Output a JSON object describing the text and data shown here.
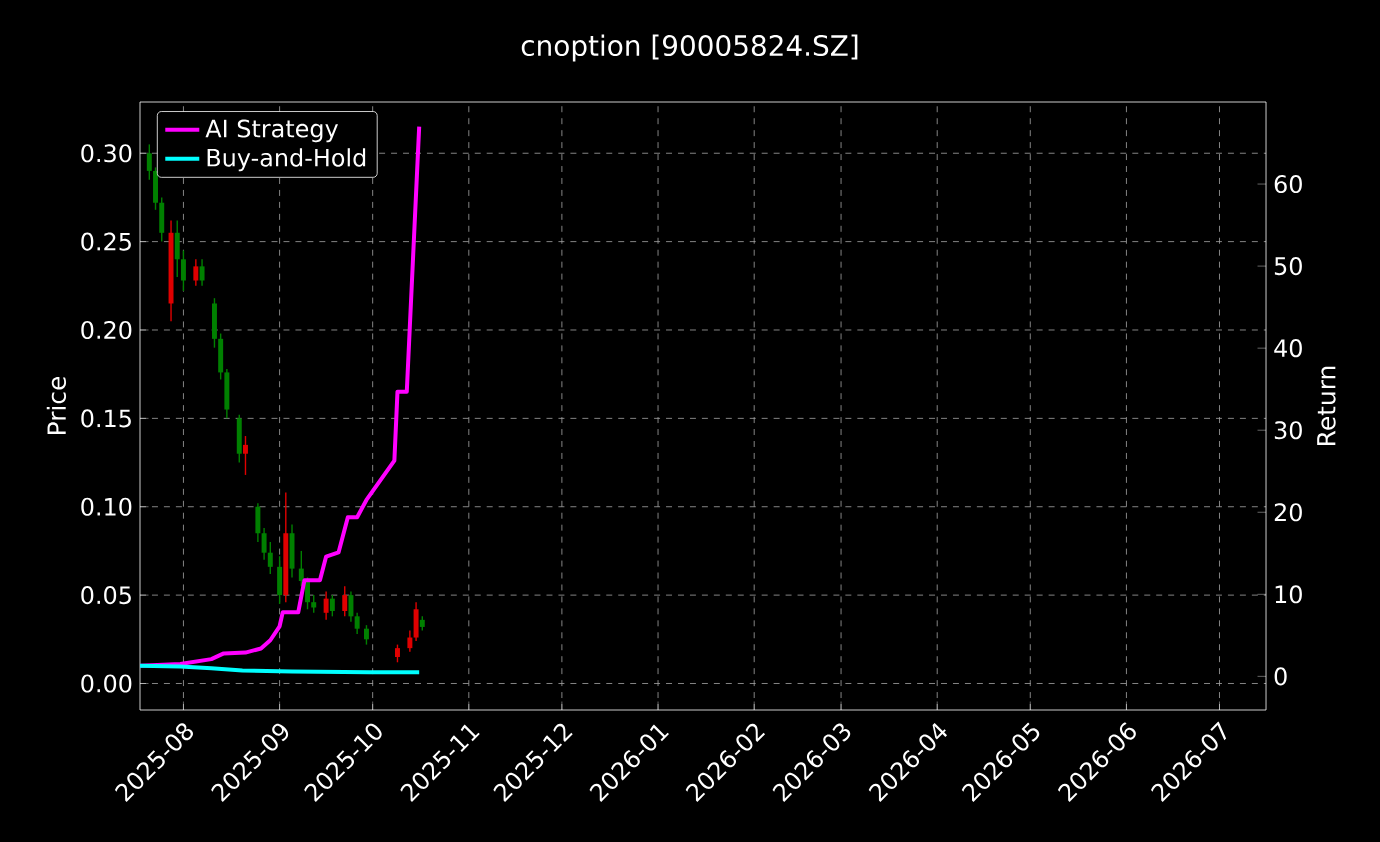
{
  "chart_data": {
    "type": "candlestick",
    "title": "cnoption [90005824.SZ]",
    "ylabel": "Price",
    "y2label": "Return",
    "x": [
      "2025-07-21",
      "2025-07-23",
      "2025-07-25",
      "2025-07-28",
      "2025-07-30",
      "2025-08-01",
      "2025-08-05",
      "2025-08-07",
      "2025-08-11",
      "2025-08-13",
      "2025-08-15",
      "2025-08-19",
      "2025-08-21",
      "2025-08-25",
      "2025-08-27",
      "2025-08-29",
      "2025-09-01",
      "2025-09-03",
      "2025-09-05",
      "2025-09-08",
      "2025-09-10",
      "2025-09-12",
      "2025-09-16",
      "2025-09-18",
      "2025-09-22",
      "2025-09-24",
      "2025-09-26",
      "2025-09-29",
      "2025-10-09",
      "2025-10-13",
      "2025-10-15",
      "2025-10-17"
    ],
    "ohlc": [
      [
        0.3,
        0.305,
        0.285,
        0.29
      ],
      [
        0.29,
        0.292,
        0.268,
        0.272
      ],
      [
        0.272,
        0.275,
        0.25,
        0.255
      ],
      [
        0.215,
        0.262,
        0.205,
        0.255
      ],
      [
        0.255,
        0.262,
        0.23,
        0.24
      ],
      [
        0.24,
        0.245,
        0.222,
        0.228
      ],
      [
        0.228,
        0.24,
        0.225,
        0.236
      ],
      [
        0.236,
        0.24,
        0.225,
        0.228
      ],
      [
        0.215,
        0.218,
        0.19,
        0.195
      ],
      [
        0.195,
        0.198,
        0.172,
        0.176
      ],
      [
        0.176,
        0.178,
        0.15,
        0.155
      ],
      [
        0.15,
        0.152,
        0.125,
        0.13
      ],
      [
        0.13,
        0.14,
        0.118,
        0.135
      ],
      [
        0.1,
        0.102,
        0.08,
        0.085
      ],
      [
        0.085,
        0.088,
        0.07,
        0.074
      ],
      [
        0.074,
        0.08,
        0.062,
        0.066
      ],
      [
        0.066,
        0.072,
        0.045,
        0.05
      ],
      [
        0.05,
        0.108,
        0.046,
        0.085
      ],
      [
        0.085,
        0.09,
        0.06,
        0.065
      ],
      [
        0.065,
        0.075,
        0.055,
        0.058
      ],
      [
        0.058,
        0.06,
        0.042,
        0.046
      ],
      [
        0.046,
        0.05,
        0.04,
        0.043
      ],
      [
        0.04,
        0.052,
        0.036,
        0.048
      ],
      [
        0.048,
        0.05,
        0.038,
        0.041
      ],
      [
        0.041,
        0.055,
        0.038,
        0.05
      ],
      [
        0.05,
        0.052,
        0.035,
        0.038
      ],
      [
        0.038,
        0.04,
        0.028,
        0.031
      ],
      [
        0.031,
        0.033,
        0.022,
        0.025
      ],
      [
        0.015,
        0.022,
        0.012,
        0.02
      ],
      [
        0.02,
        0.03,
        0.018,
        0.026
      ],
      [
        0.026,
        0.046,
        0.024,
        0.042
      ],
      [
        0.036,
        0.038,
        0.03,
        0.032
      ]
    ],
    "series": [
      {
        "name": "AI Strategy",
        "type": "line",
        "axis": "y2",
        "color": "#ff00ff",
        "x": [
          "2025-07-18",
          "2025-07-31",
          "2025-08-10",
          "2025-08-14",
          "2025-08-21",
          "2025-08-26",
          "2025-08-29",
          "2025-09-01",
          "2025-09-02",
          "2025-09-07",
          "2025-09-09",
          "2025-09-14",
          "2025-09-16",
          "2025-09-20",
          "2025-09-23",
          "2025-09-26",
          "2025-09-29",
          "2025-10-08",
          "2025-10-09",
          "2025-10-12",
          "2025-10-16"
        ],
        "values": [
          1.3,
          1.5,
          2.1,
          2.8,
          2.9,
          3.4,
          4.4,
          6.1,
          7.8,
          7.8,
          11.7,
          11.7,
          14.6,
          15.1,
          19.4,
          19.4,
          21.5,
          26.3,
          34.7,
          34.7,
          67.0
        ]
      },
      {
        "name": "Buy-and-Hold",
        "type": "line",
        "axis": "y2",
        "color": "#00ffff",
        "x": [
          "2025-07-18",
          "2025-07-31",
          "2025-08-10",
          "2025-08-20",
          "2025-09-05",
          "2025-09-30",
          "2025-10-16"
        ],
        "values": [
          1.3,
          1.2,
          1.0,
          0.7,
          0.6,
          0.5,
          0.5
        ]
      }
    ],
    "xlim": [
      "2025-07-18",
      "2026-07-16"
    ],
    "xticks": [
      "2025-08",
      "2025-09",
      "2025-10",
      "2025-11",
      "2025-12",
      "2026-01",
      "2026-02",
      "2026-03",
      "2026-04",
      "2026-05",
      "2026-06",
      "2026-07"
    ],
    "ylim": [
      -0.015,
      0.329
    ],
    "yticks": [
      {
        "value": 0,
        "label": "0.00"
      },
      {
        "value": 0.05,
        "label": "0.05"
      },
      {
        "value": 0.1,
        "label": "0.10"
      },
      {
        "value": 0.15,
        "label": "0.15"
      },
      {
        "value": 0.2,
        "label": "0.20"
      },
      {
        "value": 0.25,
        "label": "0.25"
      },
      {
        "value": 0.3,
        "label": "0.30"
      }
    ],
    "y2lim": [
      -4.1,
      70
    ],
    "y2ticks": [
      0,
      10,
      20,
      30,
      40,
      50,
      60
    ],
    "grid": true,
    "legend": "top left"
  }
}
